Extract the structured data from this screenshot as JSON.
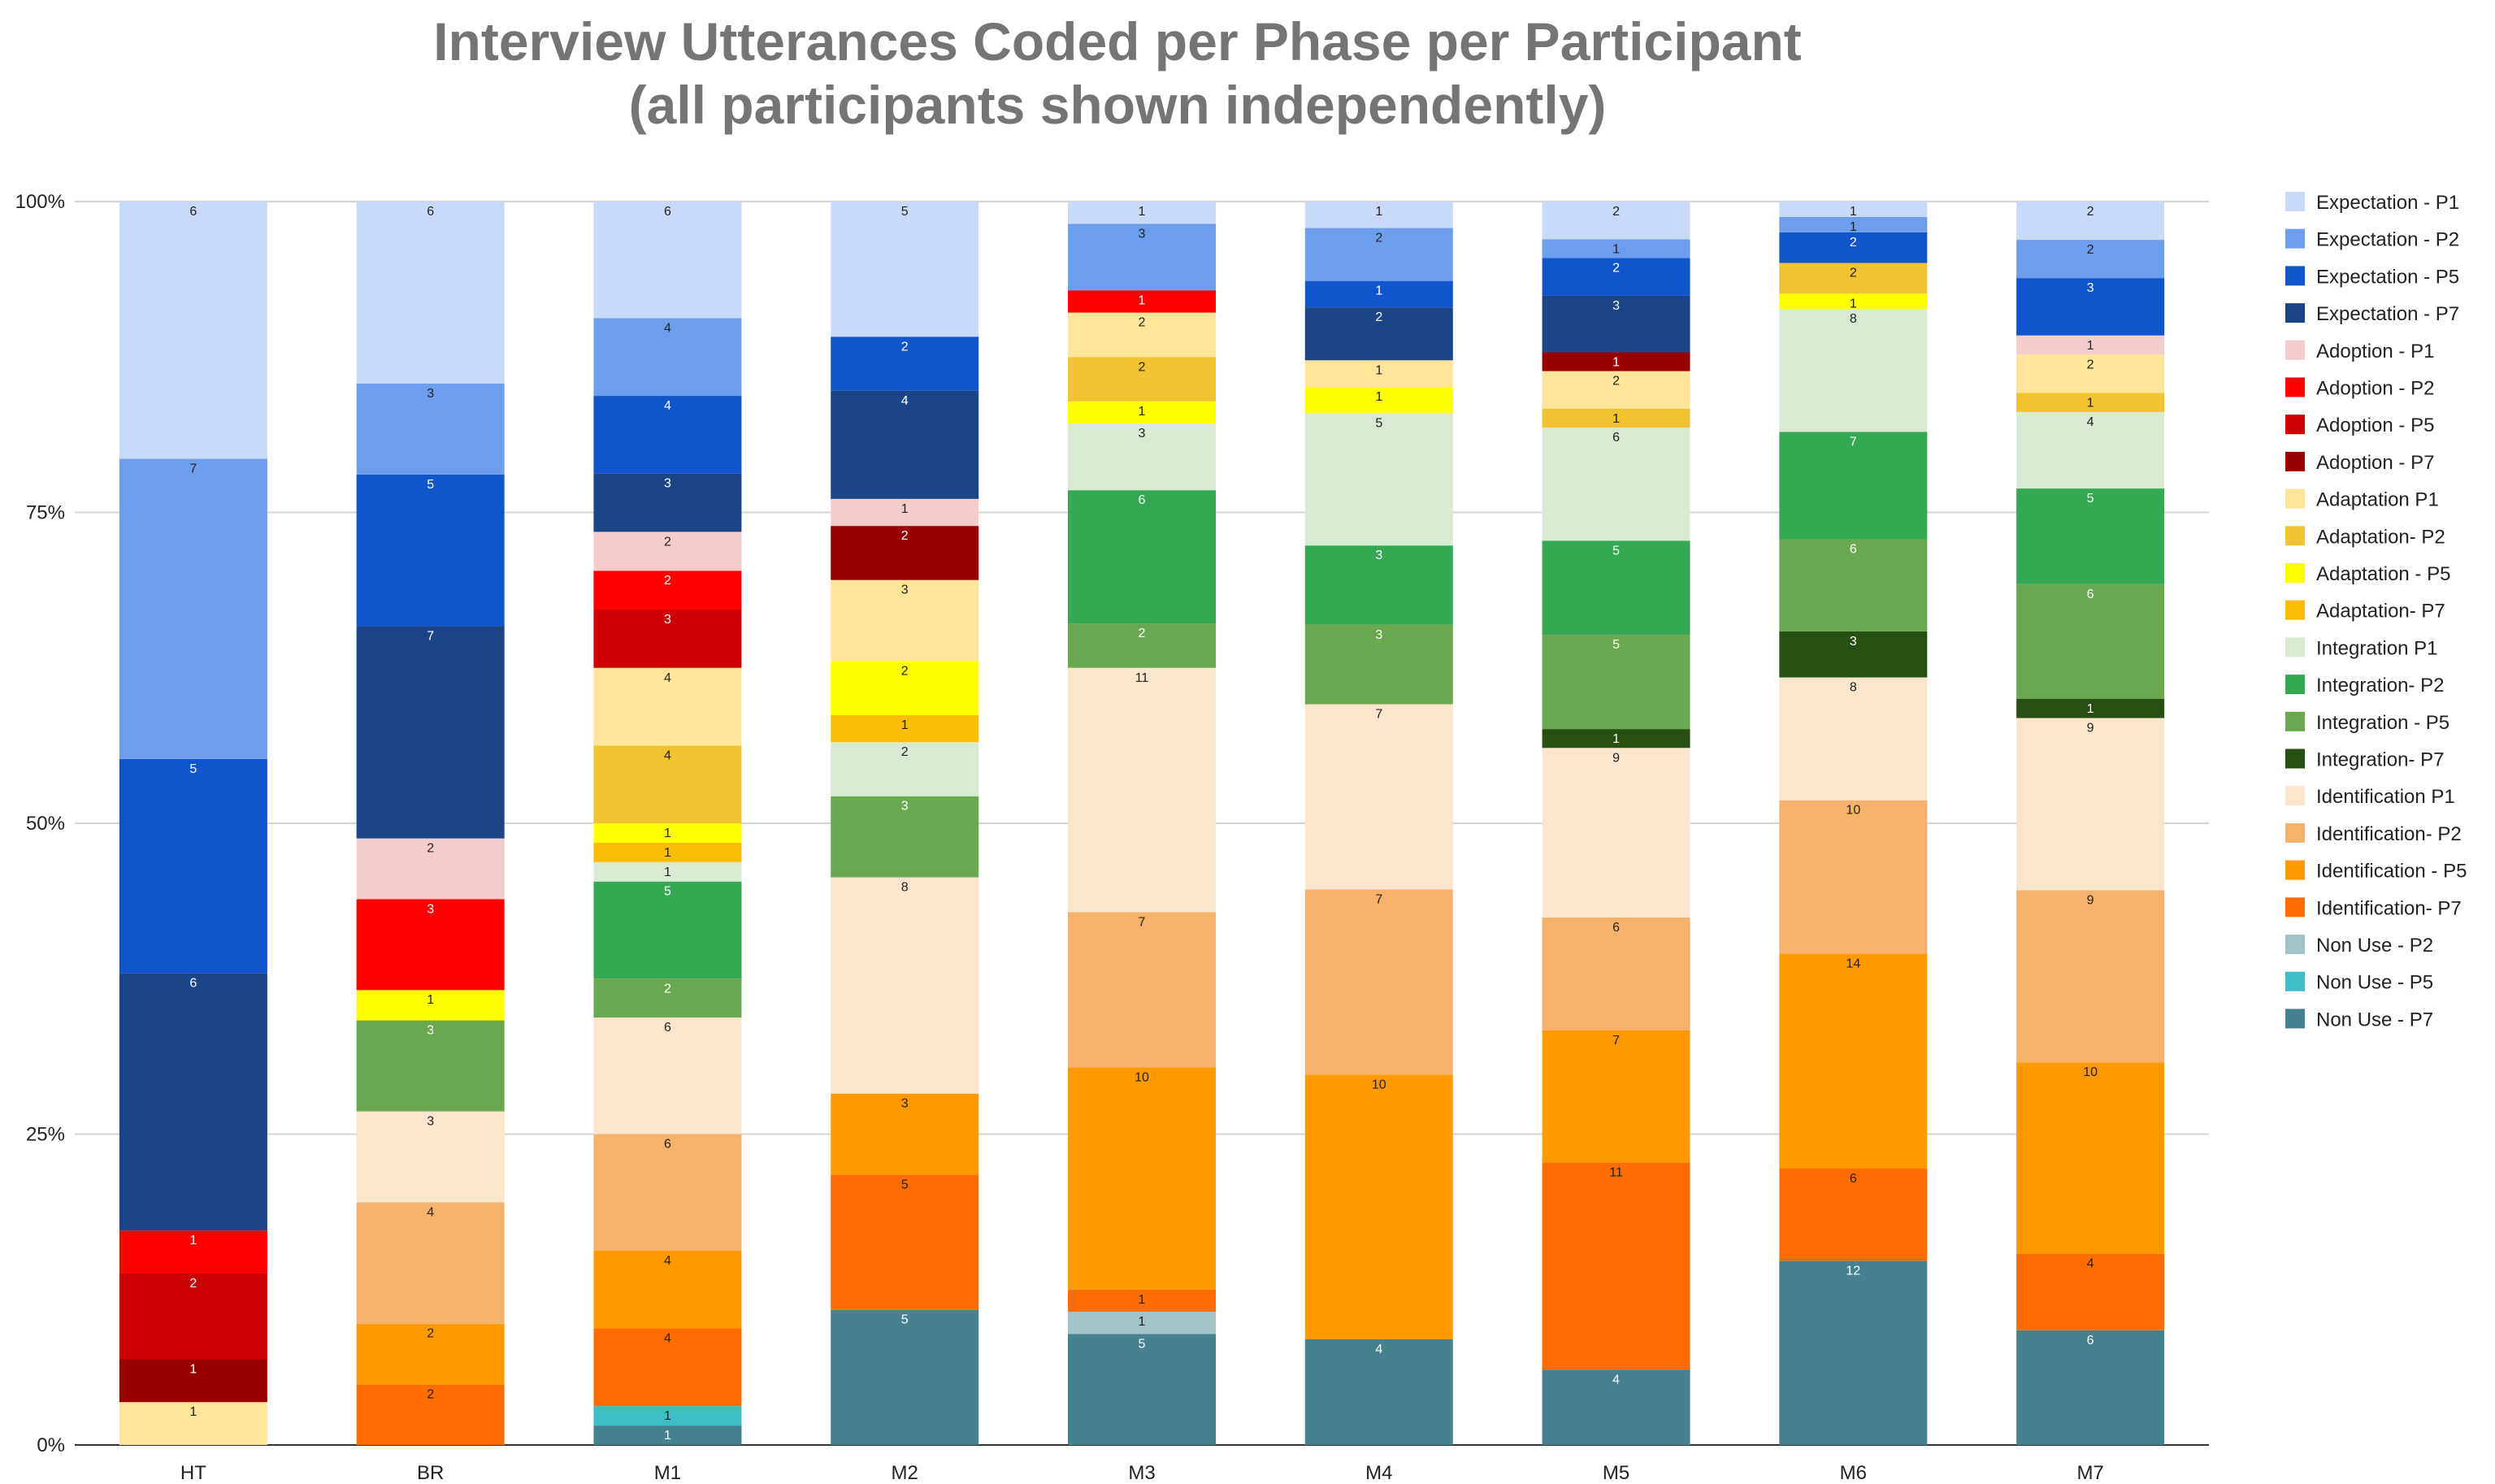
{
  "chart_data": {
    "type": "bar",
    "stacked": "percent",
    "title": "Interview Utterances Coded per Phase per Participant",
    "subtitle": "(all participants shown independently)",
    "categories": [
      "HT",
      "BR",
      "M1",
      "M2",
      "M3",
      "M4",
      "M5",
      "M6",
      "M7"
    ],
    "ytick_labels": [
      "0%",
      "25%",
      "50%",
      "75%",
      "100%"
    ],
    "ylim": [
      0,
      100
    ],
    "legend_position": "right",
    "series": [
      {
        "name": "Non Use - P7",
        "color": "#45818e",
        "values": [
          0,
          0,
          1,
          5,
          5,
          4,
          4,
          12,
          6
        ]
      },
      {
        "name": "Non Use - P5",
        "color": "#3fbdc6",
        "values": [
          0,
          0,
          1,
          0,
          0,
          0,
          0,
          0,
          0
        ]
      },
      {
        "name": "Non Use - P2",
        "color": "#a2c4c9",
        "values": [
          0,
          0,
          0,
          0,
          1,
          0,
          0,
          0,
          0
        ]
      },
      {
        "name": "Identification- P7",
        "color": "#ff6d01",
        "values": [
          0,
          2,
          4,
          5,
          1,
          0,
          11,
          6,
          4
        ]
      },
      {
        "name": "Identification - P5",
        "color": "#ff9900",
        "values": [
          0,
          2,
          4,
          3,
          10,
          10,
          7,
          14,
          10
        ]
      },
      {
        "name": "Identification- P2",
        "color": "#f6b26b",
        "values": [
          0,
          4,
          6,
          0,
          7,
          7,
          6,
          10,
          9
        ]
      },
      {
        "name": "Identification P1",
        "color": "#fce5cd",
        "values": [
          0,
          3,
          6,
          8,
          11,
          7,
          9,
          8,
          9
        ]
      },
      {
        "name": "Integration- P7",
        "color": "#274e13",
        "values": [
          0,
          0,
          0,
          0,
          0,
          0,
          1,
          3,
          1
        ]
      },
      {
        "name": "Integration - P5",
        "color": "#6aa84f",
        "values": [
          0,
          3,
          2,
          3,
          2,
          3,
          5,
          6,
          6
        ]
      },
      {
        "name": "Integration- P2",
        "color": "#34a853",
        "values": [
          0,
          0,
          5,
          0,
          6,
          3,
          5,
          7,
          5
        ]
      },
      {
        "name": "Integration P1",
        "color": "#d9ead3",
        "values": [
          0,
          0,
          1,
          2,
          3,
          5,
          6,
          8,
          4
        ]
      },
      {
        "name": "Adaptation- P7",
        "color": "#fbbc04",
        "values": [
          0,
          0,
          1,
          1,
          0,
          0,
          0,
          0,
          0
        ]
      },
      {
        "name": "Adaptation - P5",
        "color": "#ffff00",
        "values": [
          0,
          1,
          1,
          2,
          1,
          1,
          0,
          1,
          0
        ]
      },
      {
        "name": "Adaptation- P2",
        "color": "#f1c232",
        "values": [
          0,
          0,
          4,
          0,
          2,
          0,
          1,
          2,
          1
        ]
      },
      {
        "name": "Adaptation P1",
        "color": "#ffe599",
        "values": [
          1,
          0,
          4,
          3,
          2,
          1,
          2,
          0,
          2
        ]
      },
      {
        "name": "Adoption - P7",
        "color": "#990000",
        "values": [
          1,
          0,
          0,
          2,
          0,
          0,
          1,
          0,
          0
        ]
      },
      {
        "name": "Adoption - P5",
        "color": "#cc0000",
        "values": [
          2,
          0,
          3,
          0,
          0,
          0,
          0,
          0,
          0
        ]
      },
      {
        "name": "Adoption - P2",
        "color": "#ff0000",
        "values": [
          1,
          3,
          2,
          0,
          1,
          0,
          0,
          0,
          0
        ]
      },
      {
        "name": "Adoption - P1",
        "color": "#f4cccc",
        "values": [
          0,
          2,
          2,
          1,
          0,
          0,
          0,
          0,
          1
        ]
      },
      {
        "name": "Expectation - P7",
        "color": "#1c4587",
        "values": [
          6,
          7,
          3,
          4,
          0,
          2,
          3,
          0,
          0
        ]
      },
      {
        "name": "Expectation - P5",
        "color": "#1155cc",
        "values": [
          5,
          5,
          4,
          2,
          0,
          1,
          2,
          2,
          3
        ]
      },
      {
        "name": "Expectation - P2",
        "color": "#6d9eeb",
        "values": [
          7,
          3,
          4,
          0,
          3,
          2,
          1,
          1,
          2
        ]
      },
      {
        "name": "Expectation - P1",
        "color": "#c9daf8",
        "values": [
          6,
          6,
          6,
          5,
          1,
          1,
          2,
          1,
          2
        ]
      }
    ],
    "legend": [
      {
        "name": "Expectation - P1",
        "color": "#c9daf8"
      },
      {
        "name": "Expectation - P2",
        "color": "#6d9eeb"
      },
      {
        "name": "Expectation - P5",
        "color": "#1155cc"
      },
      {
        "name": "Expectation - P7",
        "color": "#1c4587"
      },
      {
        "name": "Adoption - P1",
        "color": "#f4cccc"
      },
      {
        "name": "Adoption - P2",
        "color": "#ff0000"
      },
      {
        "name": "Adoption - P5",
        "color": "#cc0000"
      },
      {
        "name": "Adoption - P7",
        "color": "#990000"
      },
      {
        "name": "Adaptation P1",
        "color": "#ffe599"
      },
      {
        "name": "Adaptation- P2",
        "color": "#f1c232"
      },
      {
        "name": "Adaptation - P5",
        "color": "#ffff00"
      },
      {
        "name": "Adaptation- P7",
        "color": "#fbbc04"
      },
      {
        "name": "Integration P1",
        "color": "#d9ead3"
      },
      {
        "name": "Integration- P2",
        "color": "#34a853"
      },
      {
        "name": "Integration - P5",
        "color": "#6aa84f"
      },
      {
        "name": "Integration- P7",
        "color": "#274e13"
      },
      {
        "name": "Identification P1",
        "color": "#fce5cd"
      },
      {
        "name": "Identification- P2",
        "color": "#f6b26b"
      },
      {
        "name": "Identification - P5",
        "color": "#ff9900"
      },
      {
        "name": "Identification- P7",
        "color": "#ff6d01"
      },
      {
        "name": "Non Use - P2",
        "color": "#a2c4c9"
      },
      {
        "name": "Non Use - P5",
        "color": "#3fbdc6"
      },
      {
        "name": "Non Use - P7",
        "color": "#45818e"
      }
    ]
  }
}
